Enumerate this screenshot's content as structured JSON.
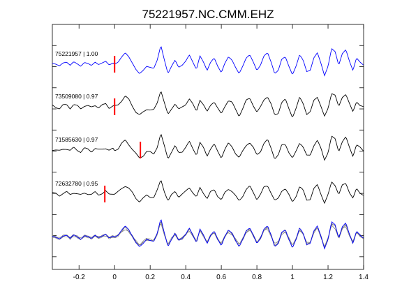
{
  "chart_data": {
    "type": "line",
    "title": "75221957.NC.CMM.EHZ",
    "xlabel": "",
    "ylabel": "",
    "xlim": [
      -0.35,
      1.4
    ],
    "x_ticks": [
      -0.2,
      0,
      0.2,
      0.4,
      0.6,
      0.8,
      1,
      1.2,
      1.4
    ],
    "x_tick_labels": [
      "-0.2",
      "0",
      "0.2",
      "0.4",
      "0.6",
      "0.8",
      "1",
      "1.2",
      "1.4"
    ],
    "grid": false,
    "colors": {
      "reference": "#0000ff",
      "match": "#000000",
      "overlay_match": "#808080",
      "pick": "#ff0000",
      "frame": "#000000"
    },
    "traces": [
      {
        "label": "75221957 | 1.00",
        "color": "#0000ff",
        "pick_time": 0.0,
        "lag": 0.0
      },
      {
        "label": "73509080 | 0.97",
        "color": "#000000",
        "pick_time": 0.0,
        "lag": 0.0
      },
      {
        "label": "71585630 | 0.97",
        "color": "#000000",
        "pick_time": 0.145,
        "lag": 0.0
      },
      {
        "label": "72632780 | 0.95",
        "color": "#000000",
        "pick_time": -0.055,
        "lag": 0.0
      }
    ],
    "reference_waveform": {
      "t": [
        -0.35,
        -0.33,
        -0.31,
        -0.29,
        -0.27,
        -0.25,
        -0.23,
        -0.21,
        -0.19,
        -0.17,
        -0.15,
        -0.13,
        -0.11,
        -0.09,
        -0.07,
        -0.05,
        -0.03,
        -0.01,
        0.0,
        0.02,
        0.04,
        0.06,
        0.08,
        0.1,
        0.12,
        0.14,
        0.16,
        0.18,
        0.2,
        0.22,
        0.24,
        0.26,
        0.28,
        0.3,
        0.32,
        0.34,
        0.36,
        0.38,
        0.4,
        0.42,
        0.44,
        0.46,
        0.48,
        0.5,
        0.52,
        0.54,
        0.56,
        0.58,
        0.6,
        0.62,
        0.64,
        0.66,
        0.68,
        0.7,
        0.72,
        0.74,
        0.76,
        0.78,
        0.8,
        0.82,
        0.84,
        0.86,
        0.88,
        0.9,
        0.92,
        0.94,
        0.96,
        0.98,
        1.0,
        1.02,
        1.04,
        1.06,
        1.08,
        1.1,
        1.12,
        1.14,
        1.16,
        1.18,
        1.2,
        1.22,
        1.24,
        1.26,
        1.28,
        1.3,
        1.32,
        1.34,
        1.36,
        1.38,
        1.4
      ],
      "amp": [
        0.05,
        0.0,
        -0.08,
        0.06,
        0.1,
        -0.05,
        0.12,
        0.02,
        -0.1,
        0.08,
        0.04,
        -0.06,
        0.1,
        -0.02,
        0.06,
        0.14,
        -0.04,
        0.06,
        0.0,
        0.1,
        0.35,
        0.55,
        0.35,
        0.05,
        -0.25,
        -0.45,
        -0.3,
        -0.1,
        -0.15,
        -0.2,
        0.2,
        0.9,
        0.2,
        -0.45,
        -0.1,
        0.2,
        -0.15,
        -0.05,
        0.15,
        0.45,
        0.1,
        -0.25,
        0.4,
        0.1,
        -0.3,
        0.1,
        0.3,
        -0.1,
        -0.4,
        0.05,
        0.35,
        0.2,
        -0.15,
        -0.45,
        -0.1,
        0.3,
        0.45,
        0.1,
        -0.3,
        -0.05,
        0.4,
        0.55,
        0.1,
        -0.45,
        -0.3,
        0.25,
        0.35,
        -0.1,
        -0.5,
        -0.1,
        0.45,
        0.2,
        -0.35,
        -0.3,
        0.3,
        0.55,
        0.05,
        -0.55,
        -0.1,
        0.75,
        0.6,
        -0.05,
        0.5,
        0.7,
        0.15,
        -0.3,
        0.3,
        0.1,
        -0.05
      ]
    },
    "overlay_label": ""
  }
}
